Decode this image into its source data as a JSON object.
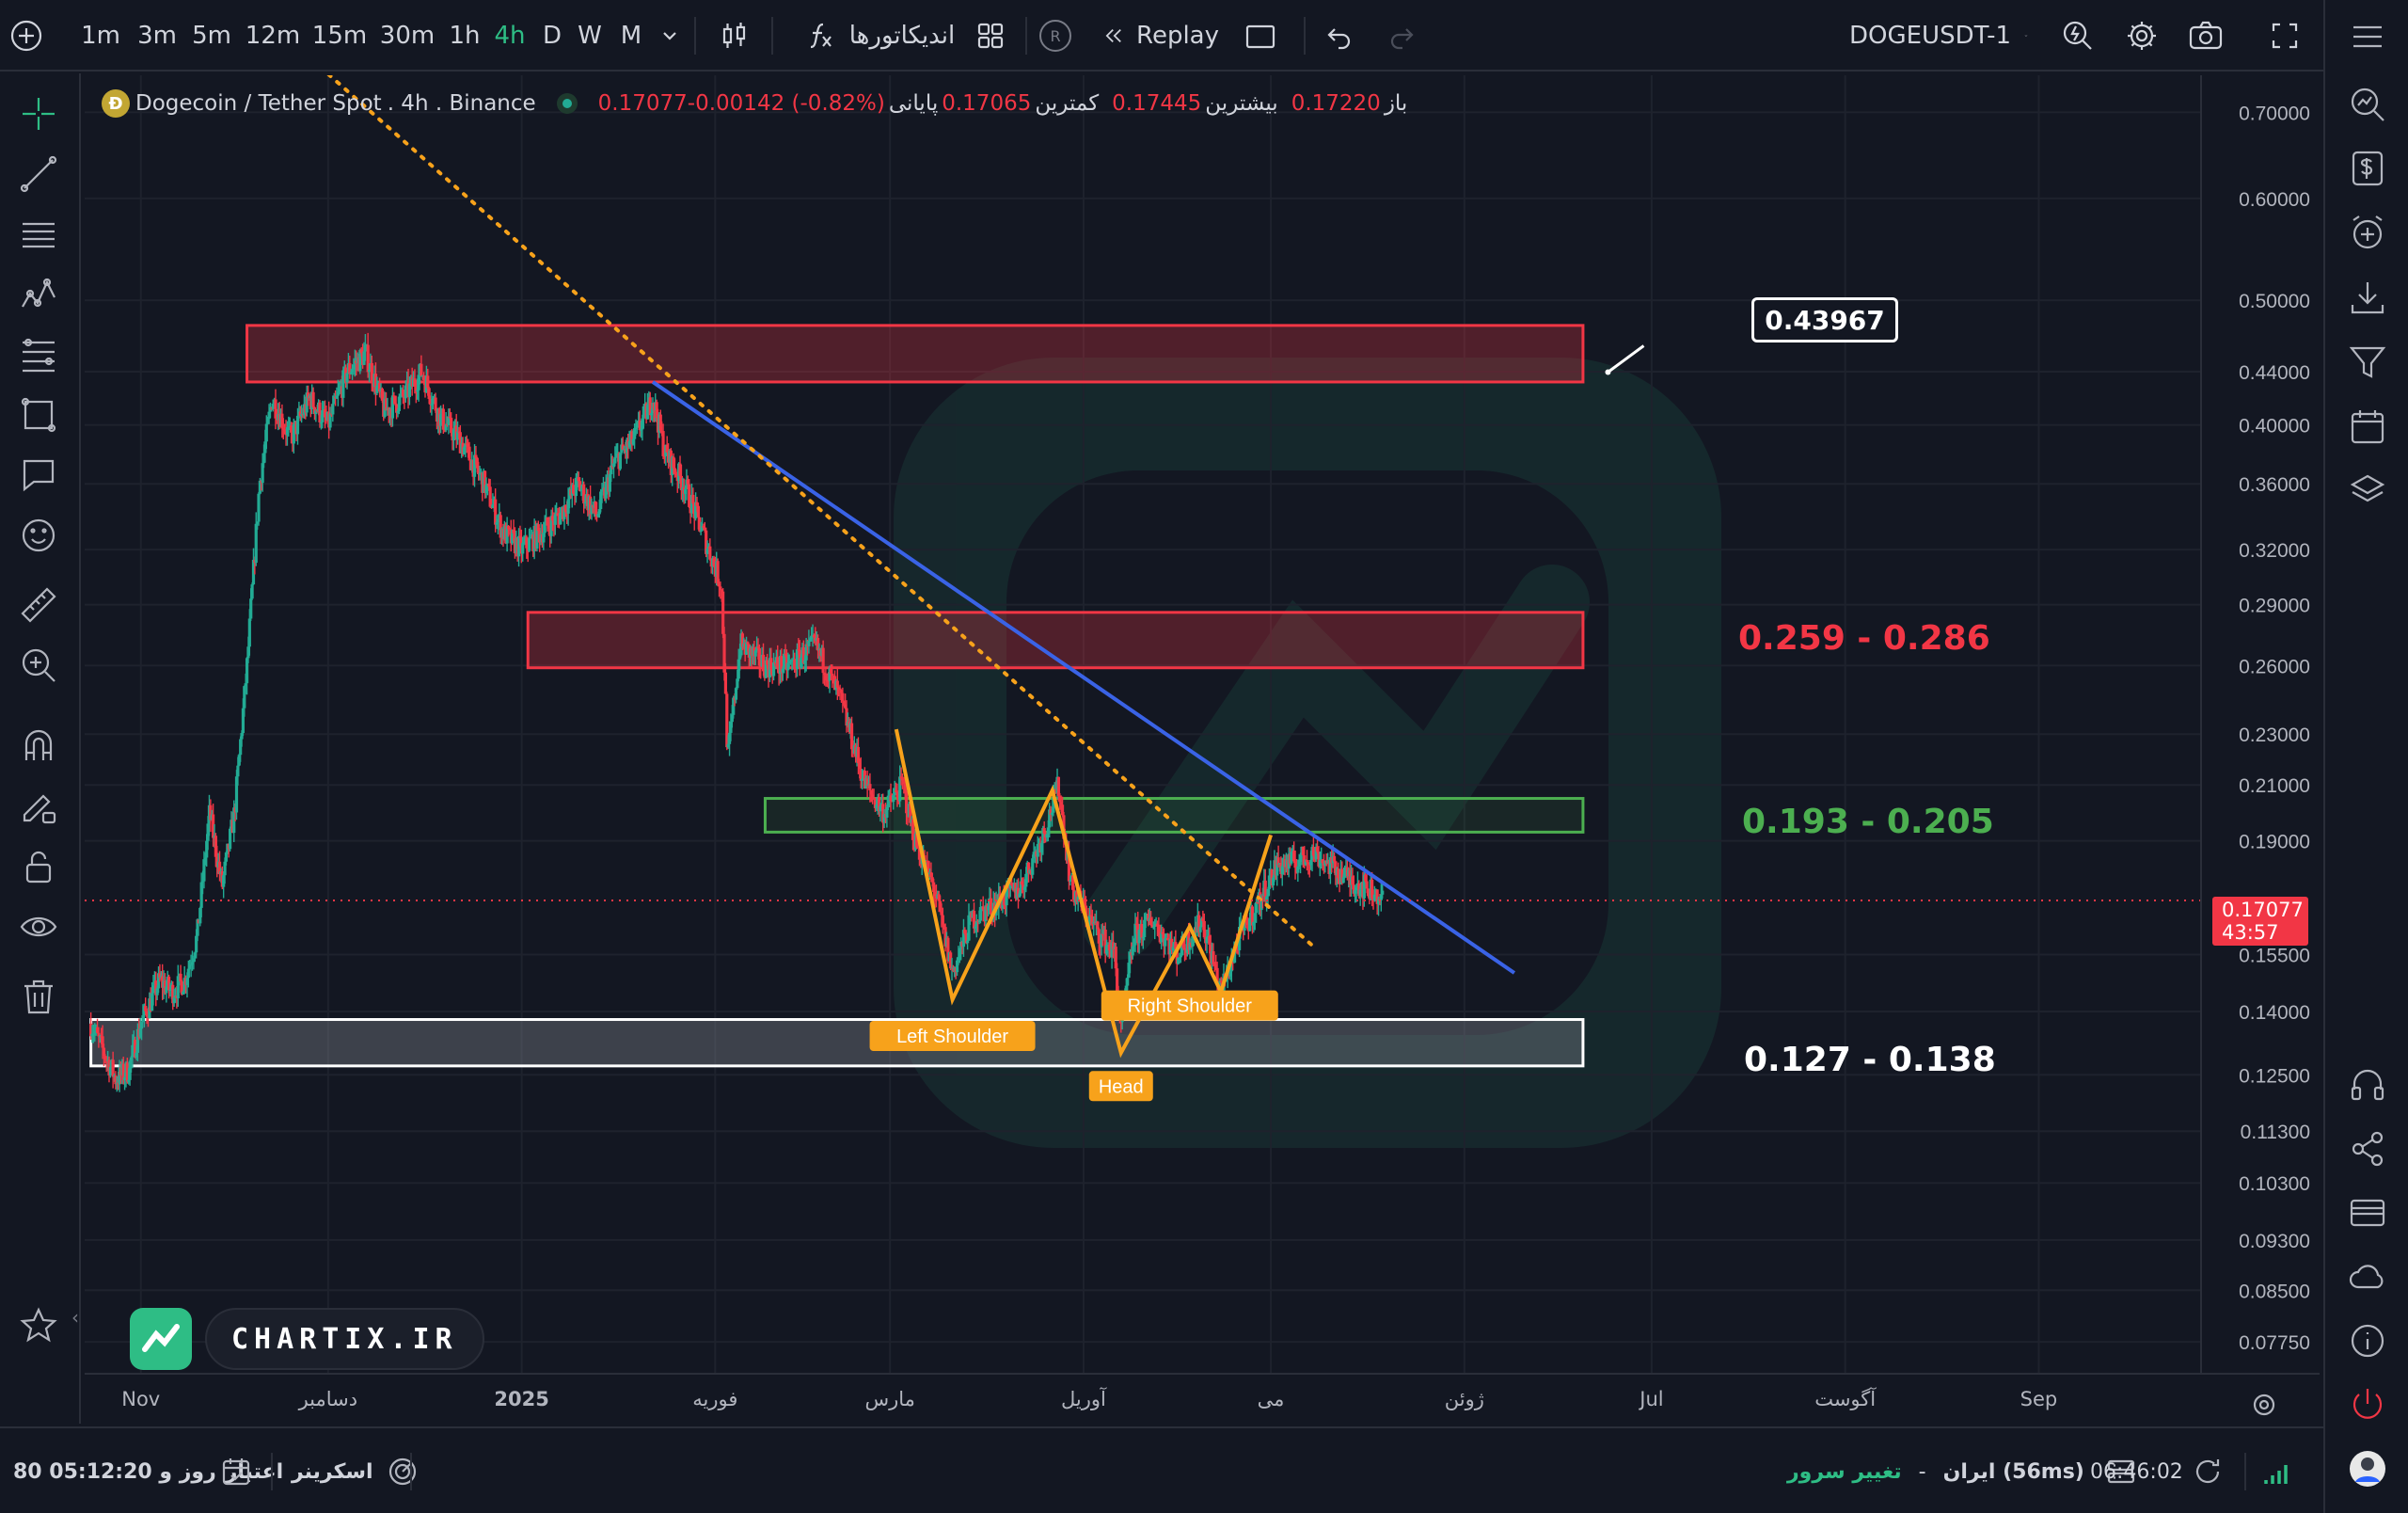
{
  "toolbar": {
    "add_label": "+",
    "timeframes": [
      "1m",
      "3m",
      "5m",
      "12m",
      "15m",
      "30m",
      "1h",
      "4h",
      "D",
      "W",
      "M"
    ],
    "active_timeframe": "4h",
    "indicators_label": "اندیکاتورها",
    "replay_label": "Replay",
    "replay_badge": "R",
    "symbol_label": "DOGEUSDT-1"
  },
  "legend": {
    "coin_letter": "Ð",
    "symbol": "Dogecoin / Tether Spot",
    "interval": " . 4h . Binance",
    "open_label": "باز",
    "open_value": "0.17220",
    "high_label": "بیشترین",
    "high_value": "0.17445",
    "low_label": "کمترین",
    "low_value": "0.17065",
    "close_label": "پایانی",
    "close_value": "0.17077",
    "change_value": "-0.00142 (-0.82%)"
  },
  "price_tag": {
    "price": "0.17077",
    "countdown": "43:57"
  },
  "callout_value": "0.43967",
  "zones": {
    "upper": "",
    "mid_red": "0.259 - 0.286",
    "green": "0.193 - 0.205",
    "white": "0.127 - 0.138"
  },
  "pattern_labels": {
    "left_shoulder": "Left Shoulder",
    "head": "Head",
    "right_shoulder": "Right Shoulder"
  },
  "brand": {
    "name": "CHARTIX.IR"
  },
  "status": {
    "credit_label": "اعتبار",
    "credit_value": "80 روز و 05:12:20",
    "screener_label": "اسکرینر",
    "server_change": "تغییر سرور",
    "server_dash": "-",
    "server_location": "ایران (56ms)",
    "clock": "06:46:02"
  },
  "colors": {
    "up": "#22ab94",
    "down": "#f23645",
    "blue_trend": "#3a63e6",
    "orange": "#f7a21b",
    "green_zone": "#4caf50"
  },
  "chart_data": {
    "type": "candlestick",
    "symbol": "DOGEUSDT",
    "interval": "4h",
    "scale": "log",
    "ylim": [
      0.0732,
      0.748
    ],
    "y_ticks": [
      0.7,
      0.6,
      0.5,
      0.44,
      0.4,
      0.36,
      0.32,
      0.29,
      0.26,
      0.23,
      0.21,
      0.19,
      0.155,
      0.14,
      0.125,
      0.113,
      0.103,
      0.093,
      0.085,
      0.0775
    ],
    "x_ticks": [
      "Nov",
      "دسامبر",
      "2025",
      "فوریه",
      "مارس",
      "آوریل",
      "می",
      "ژوئن",
      "Jul",
      "آگوست",
      "Sep"
    ],
    "path": [
      [
        "2024-10-24",
        0.137
      ],
      [
        "2024-10-28",
        0.124
      ],
      [
        "2024-10-30",
        0.126
      ],
      [
        "2024-11-01",
        0.137
      ],
      [
        "2024-11-04",
        0.148
      ],
      [
        "2024-11-06",
        0.145
      ],
      [
        "2024-11-08",
        0.148
      ],
      [
        "2024-11-10",
        0.16
      ],
      [
        "2024-11-12",
        0.2
      ],
      [
        "2024-11-14",
        0.175
      ],
      [
        "2024-11-16",
        0.2
      ],
      [
        "2024-11-18",
        0.26
      ],
      [
        "2024-11-20",
        0.36
      ],
      [
        "2024-11-22",
        0.42
      ],
      [
        "2024-11-25",
        0.39
      ],
      [
        "2024-11-28",
        0.42
      ],
      [
        "2024-12-01",
        0.4
      ],
      [
        "2024-12-04",
        0.44
      ],
      [
        "2024-12-07",
        0.455
      ],
      [
        "2024-12-10",
        0.41
      ],
      [
        "2024-12-13",
        0.42
      ],
      [
        "2024-12-16",
        0.44
      ],
      [
        "2024-12-19",
        0.405
      ],
      [
        "2024-12-22",
        0.39
      ],
      [
        "2024-12-26",
        0.36
      ],
      [
        "2024-12-29",
        0.33
      ],
      [
        "2025-01-01",
        0.32
      ],
      [
        "2025-01-04",
        0.33
      ],
      [
        "2025-01-07",
        0.34
      ],
      [
        "2025-01-10",
        0.36
      ],
      [
        "2025-01-13",
        0.34
      ],
      [
        "2025-01-16",
        0.375
      ],
      [
        "2025-01-19",
        0.39
      ],
      [
        "2025-01-22",
        0.42
      ],
      [
        "2025-01-24",
        0.38
      ],
      [
        "2025-01-27",
        0.36
      ],
      [
        "2025-01-30",
        0.33
      ],
      [
        "2025-02-02",
        0.3
      ],
      [
        "2025-02-03",
        0.22
      ],
      [
        "2025-02-05",
        0.27
      ],
      [
        "2025-02-09",
        0.26
      ],
      [
        "2025-02-13",
        0.26
      ],
      [
        "2025-02-17",
        0.27
      ],
      [
        "2025-02-21",
        0.245
      ],
      [
        "2025-02-25",
        0.21
      ],
      [
        "2025-02-28",
        0.2
      ],
      [
        "2025-03-03",
        0.21
      ],
      [
        "2025-03-05",
        0.19
      ],
      [
        "2025-03-08",
        0.175
      ],
      [
        "2025-03-11",
        0.15
      ],
      [
        "2025-03-14",
        0.165
      ],
      [
        "2025-03-18",
        0.17
      ],
      [
        "2025-03-22",
        0.175
      ],
      [
        "2025-03-26",
        0.195
      ],
      [
        "2025-03-28",
        0.21
      ],
      [
        "2025-03-30",
        0.175
      ],
      [
        "2025-04-03",
        0.162
      ],
      [
        "2025-04-06",
        0.155
      ],
      [
        "2025-04-07",
        0.135
      ],
      [
        "2025-04-09",
        0.16
      ],
      [
        "2025-04-12",
        0.165
      ],
      [
        "2025-04-16",
        0.155
      ],
      [
        "2025-04-20",
        0.165
      ],
      [
        "2025-04-23",
        0.145
      ],
      [
        "2025-04-26",
        0.16
      ],
      [
        "2025-04-29",
        0.17
      ],
      [
        "2025-05-02",
        0.182
      ],
      [
        "2025-05-05",
        0.183
      ],
      [
        "2025-05-08",
        0.186
      ],
      [
        "2025-05-11",
        0.181
      ],
      [
        "2025-05-14",
        0.177
      ],
      [
        "2025-05-17",
        0.174
      ],
      [
        "2025-05-19",
        0.1708
      ]
    ],
    "zones": [
      {
        "from": "2024-11-18",
        "to": "2025-06-20",
        "low": 0.432,
        "high": 0.478,
        "color": "red"
      },
      {
        "from": "2025-01-02",
        "to": "2025-06-20",
        "low": 0.259,
        "high": 0.286,
        "color": "red",
        "label": "0.259 - 0.286"
      },
      {
        "from": "2025-02-09",
        "to": "2025-06-20",
        "low": 0.193,
        "high": 0.205,
        "color": "green",
        "label": "0.193 - 0.205"
      },
      {
        "from": "2024-10-24",
        "to": "2025-06-20",
        "low": 0.127,
        "high": 0.138,
        "color": "white",
        "label": "0.127 - 0.138"
      }
    ],
    "trendlines": [
      {
        "style": "solid",
        "color": "blue",
        "from": [
          "2025-01-22",
          0.432
        ],
        "to": [
          "2025-06-09",
          0.15
        ]
      },
      {
        "style": "dotted",
        "color": "orange",
        "from": [
          "2024-11-27",
          0.78
        ],
        "to": [
          "2025-05-08",
          0.157
        ]
      }
    ],
    "head_and_shoulders": [
      [
        "2025-03-02",
        0.232
      ],
      [
        "2025-03-11",
        0.143
      ],
      [
        "2025-03-27",
        0.208
      ],
      [
        "2025-04-07",
        0.13
      ],
      [
        "2025-04-18",
        0.163
      ],
      [
        "2025-04-23",
        0.145
      ],
      [
        "2025-05-01",
        0.192
      ]
    ],
    "pattern_labels": [
      {
        "text": "Left Shoulder",
        "at": [
          "2025-03-11",
          0.134
        ]
      },
      {
        "text": "Head",
        "at": [
          "2025-04-07",
          0.1225
        ]
      },
      {
        "text": "Right Shoulder",
        "at": [
          "2025-04-18",
          0.1415
        ]
      }
    ],
    "last_price": 0.17077,
    "callout_price": 0.43967
  }
}
